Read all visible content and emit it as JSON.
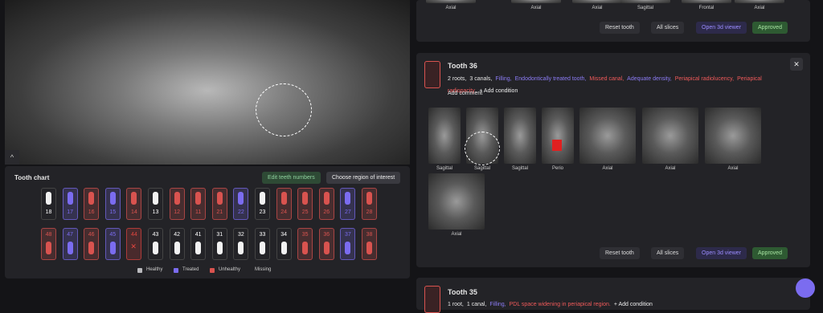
{
  "tooth_chart": {
    "title": "Tooth chart",
    "buttons": [
      "Edit teeth numbers",
      "Choose region of interest"
    ],
    "upper": [
      {
        "number": "18",
        "status": "Healthy"
      },
      {
        "number": "17",
        "status": "Treated"
      },
      {
        "number": "16",
        "status": "Unhealthy"
      },
      {
        "number": "15",
        "status": "Treated"
      },
      {
        "number": "14",
        "status": "Unhealthy"
      },
      {
        "number": "13",
        "status": "Healthy"
      },
      {
        "number": "12",
        "status": "Unhealthy"
      },
      {
        "number": "11",
        "status": "Unhealthy"
      },
      {
        "number": "21",
        "status": "Unhealthy"
      },
      {
        "number": "22",
        "status": "Treated"
      },
      {
        "number": "23",
        "status": "Healthy"
      },
      {
        "number": "24",
        "status": "Unhealthy"
      },
      {
        "number": "25",
        "status": "Unhealthy"
      },
      {
        "number": "26",
        "status": "Unhealthy"
      },
      {
        "number": "27",
        "status": "Treated"
      },
      {
        "number": "28",
        "status": "Unhealthy"
      }
    ],
    "lower": [
      {
        "number": "48",
        "status": "Unhealthy"
      },
      {
        "number": "47",
        "status": "Treated"
      },
      {
        "number": "46",
        "status": "Unhealthy"
      },
      {
        "number": "45",
        "status": "Treated"
      },
      {
        "number": "44",
        "status": "Missing"
      },
      {
        "number": "43",
        "status": "Healthy"
      },
      {
        "number": "42",
        "status": "Healthy"
      },
      {
        "number": "41",
        "status": "Healthy"
      },
      {
        "number": "31",
        "status": "Healthy"
      },
      {
        "number": "32",
        "status": "Healthy"
      },
      {
        "number": "33",
        "status": "Healthy"
      },
      {
        "number": "34",
        "status": "Healthy"
      },
      {
        "number": "35",
        "status": "Unhealthy"
      },
      {
        "number": "36",
        "status": "Unhealthy"
      },
      {
        "number": "37",
        "status": "Treated"
      },
      {
        "number": "38",
        "status": "Unhealthy"
      }
    ],
    "legend": [
      {
        "label": "Healthy",
        "color": "#b9b9bd"
      },
      {
        "label": "Treated",
        "color": "#7b6cf0"
      },
      {
        "label": "Unhealthy",
        "color": "#d9534f"
      },
      {
        "label": "Missing",
        "color": "#e0453f"
      }
    ]
  },
  "top_card": {
    "slices": [
      "Axial",
      "Axial",
      "Axial",
      "Sagittal",
      "Frontal",
      "Axial"
    ],
    "buttons": [
      "Reset tooth",
      "All slices",
      "Open 3d viewer",
      "Approved"
    ]
  },
  "tooth_36": {
    "title": "Tooth 36",
    "conditions": [
      {
        "text": "2 roots,",
        "color": "#e6e6e6"
      },
      {
        "text": "3 canals,",
        "color": "#e6e6e6"
      },
      {
        "text": "Filling,",
        "color": "#8c7cf5"
      },
      {
        "text": "Endodontically treated tooth,",
        "color": "#8c7cf5"
      },
      {
        "text": "Missed canal,",
        "color": "#f05a5a"
      },
      {
        "text": "Adequate density,",
        "color": "#8c7cf5"
      },
      {
        "text": "Periapical radiolucency,",
        "color": "#f05a5a"
      },
      {
        "text": "Periapical radiopacity,",
        "color": "#f05a5a"
      }
    ],
    "add_condition": "+ Add condition",
    "add_comment": "Add comment",
    "slices": [
      "Sagittal",
      "Sagittal",
      "Sagittal",
      "Perio",
      "Axial",
      "Axial",
      "Axial",
      "Axial"
    ],
    "buttons": [
      "Reset tooth",
      "All slices",
      "Open 3d viewer",
      "Approved"
    ]
  },
  "tooth_35": {
    "title": "Tooth 35",
    "conditions": [
      {
        "text": "1 root,",
        "color": "#e6e6e6"
      },
      {
        "text": "1 canal,",
        "color": "#e6e6e6"
      },
      {
        "text": "Filling,",
        "color": "#8c7cf5"
      },
      {
        "text": "PDL space widening in periapical region.",
        "color": "#f05a5a"
      }
    ],
    "add_condition": "+ Add condition"
  }
}
